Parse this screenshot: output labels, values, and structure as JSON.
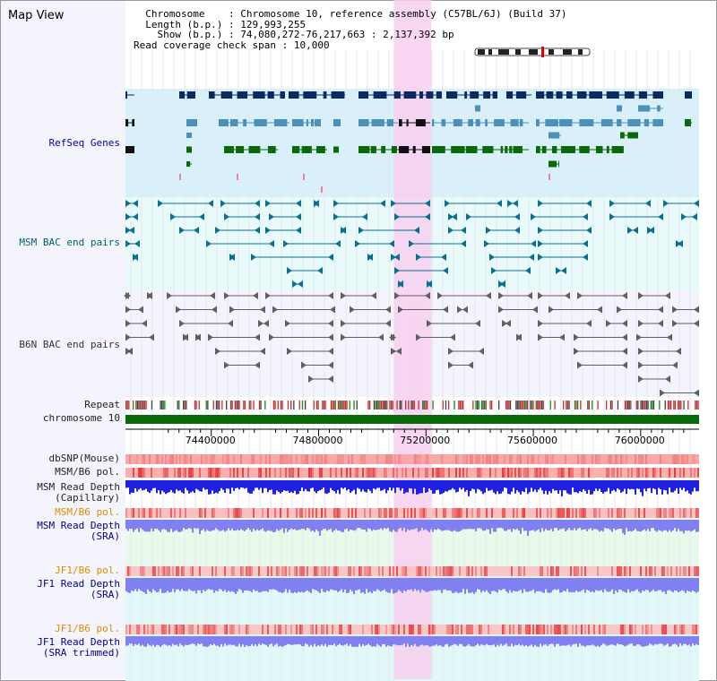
{
  "app": {
    "title": "Map View"
  },
  "info": {
    "chromosome_key": "Chromosome",
    "chromosome_val": "Chromosome 10, reference assembly (C57BL/6J) (Build 37)",
    "length_key": "Length (b.p.)",
    "length_val": "129,993,255",
    "show_key": "Show (b.p.)",
    "show_val": "74,080,272-76,217,663 : 2,137,392 bp",
    "coverage_key": "Read coverage check span",
    "coverage_val": "10,000"
  },
  "tracks": {
    "refseq": "RefSeq Genes",
    "msm_bac": "MSM BAC end pairs",
    "b6n_bac": "B6N BAC end pairs",
    "repeat": "Repeat",
    "chromosome": "chromosome 10",
    "dbsnp": "dbSNP(Mouse)",
    "msm_b6_pol_1": "MSM/B6 pol.",
    "msm_depth_cap_1": "MSM Read Depth",
    "msm_depth_cap_2": "(Capillary)",
    "msm_b6_pol_2": "MSM/B6 pol.",
    "msm_depth_sra_1": "MSM Read Depth",
    "msm_depth_sra_2": "(SRA)",
    "jf1_b6_pol_1": "JF1/B6 pol.",
    "jf1_depth_sra_1": "JF1 Read Depth",
    "jf1_depth_sra_2": "(SRA)",
    "jf1_b6_pol_2": "JF1/B6 pol.",
    "jf1_depth_trim_1": "JF1 Read Depth",
    "jf1_depth_trim_2": "(SRA trimmed)"
  },
  "axis": {
    "ticks": [
      "74400000",
      "74800000",
      "75200000",
      "75600000",
      "76000000"
    ],
    "tick_values": [
      74400000,
      74800000,
      75200000,
      75600000,
      76000000
    ],
    "start": 74080272,
    "end": 76217663
  },
  "highlight": {
    "start": 75080000,
    "end": 75220000
  },
  "colors": {
    "refseq_bg": "#d8f0fa",
    "msm_bg": "#e8fafa",
    "b6n_bg": "#f4f4fc",
    "highlight": "#f8d0f0",
    "gene_dark": "#0a2a60",
    "gene_mid": "#4a90b8",
    "gene_green": "#0a6a0a",
    "msm_line": "#0a7090",
    "b6n_line": "#606060",
    "chromosome_bar": "#0a6a0a",
    "snp": "#f08080",
    "depth_blue": "#2020e0",
    "depth_light": "#8080f0"
  }
}
